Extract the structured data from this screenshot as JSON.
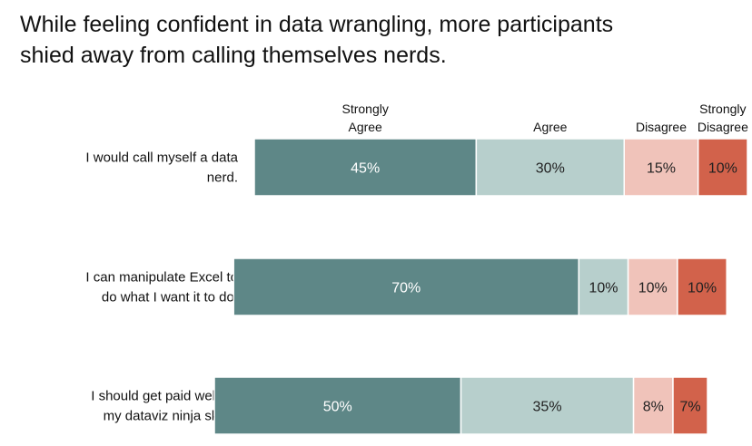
{
  "title_lines": [
    "While feeling confident in data wrangling, more participants",
    "shied away from calling themselves nerds."
  ],
  "chart_data": {
    "type": "bar",
    "orientation": "horizontal",
    "stacked": true,
    "legend_placement": "top",
    "grid": false,
    "categories": [
      "I would call myself a data nerd.",
      "I can manipulate Excel to do what I want it to do.",
      "I should get paid well for my dataviz ninja skills."
    ],
    "category_lines": [
      [
        "I would call myself a data",
        "nerd."
      ],
      [
        "I can manipulate Excel to",
        "do what I want it to do."
      ],
      [
        "I should get paid well for",
        "my dataviz ninja skills."
      ]
    ],
    "series": [
      {
        "name": "Strongly Agree",
        "name_lines": [
          "Strongly",
          "Agree"
        ],
        "color": "#5e8787",
        "label_color": "#ffffff",
        "values": [
          45,
          70,
          50
        ],
        "labels": [
          "45%",
          "70%",
          "50%"
        ]
      },
      {
        "name": "Agree",
        "name_lines": [
          "Agree"
        ],
        "color": "#b7cfcc",
        "label_color": "#222222",
        "values": [
          30,
          10,
          35
        ],
        "labels": [
          "30%",
          "10%",
          "35%"
        ]
      },
      {
        "name": "Disagree",
        "name_lines": [
          "Disagree"
        ],
        "color": "#f0c3ba",
        "label_color": "#222222",
        "values": [
          15,
          10,
          8
        ],
        "labels": [
          "15%",
          "10%",
          "8%"
        ]
      },
      {
        "name": "Strongly Disagree",
        "name_lines": [
          "Strongly",
          "Disagree"
        ],
        "color": "#d2624b",
        "label_color": "#222222",
        "values": [
          10,
          10,
          7
        ],
        "labels": [
          "10%",
          "10%",
          "7%"
        ]
      }
    ],
    "bar_offsets": [
      0,
      -4.2,
      -8.1
    ]
  }
}
